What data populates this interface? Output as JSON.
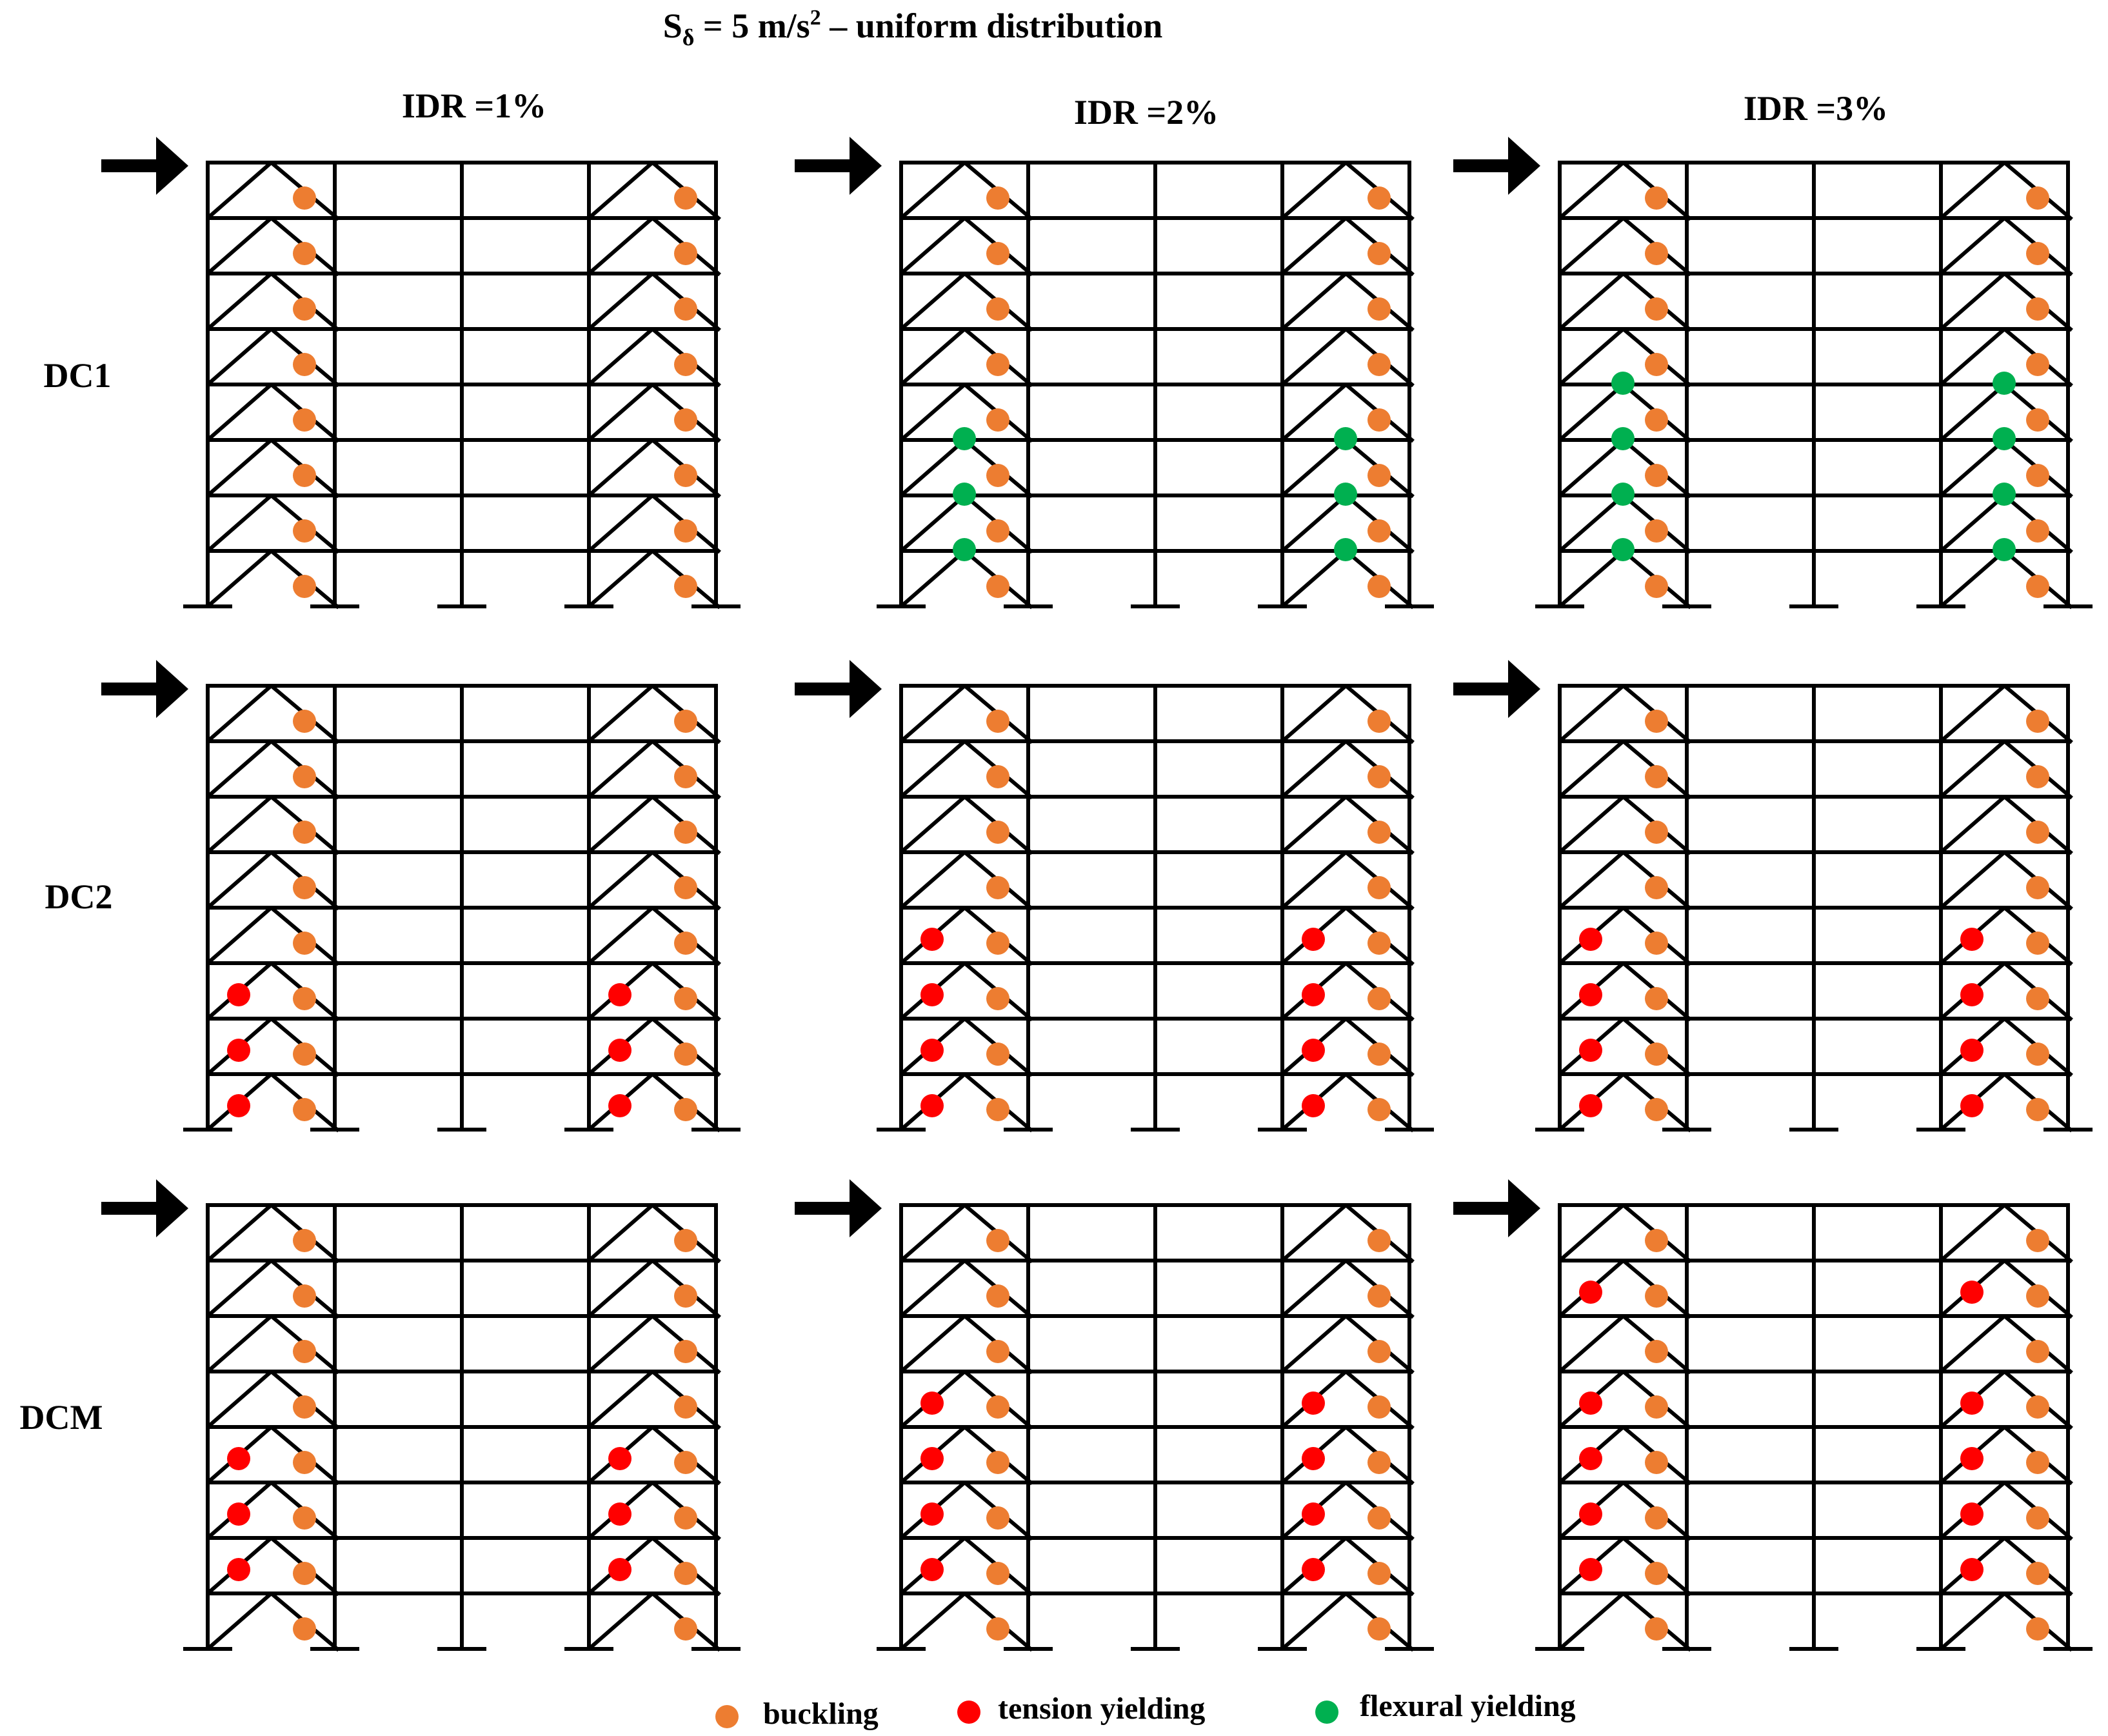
{
  "figure": {
    "title_main": "S",
    "title_sub": "δ",
    "title_mid": " = 5 m/s",
    "title_sup": "2",
    "title_tail": " – uniform distribution"
  },
  "columns": [
    "IDR =1%",
    "IDR =2%",
    "IDR =3%"
  ],
  "rows": [
    "DC1",
    "DC2",
    "DCM"
  ],
  "legend": [
    {
      "key": "buckling",
      "label": "buckling",
      "color": "#ED7D31"
    },
    {
      "key": "tension",
      "label": "tension yielding",
      "color": "#FF0000"
    },
    {
      "key": "flexural",
      "label": "flexural yielding",
      "color": "#00B050"
    }
  ],
  "frame": {
    "stories": 8,
    "bays": 4,
    "braced_bays": [
      0,
      3
    ],
    "load_arrow": "right-arrow"
  },
  "panels": [
    {
      "row": "DC1",
      "column": "IDR =1%",
      "buckling_stories": [
        1,
        2,
        3,
        4,
        5,
        6,
        7,
        8
      ],
      "tension_stories": [],
      "flexural_levels": []
    },
    {
      "row": "DC1",
      "column": "IDR =2%",
      "buckling_stories": [
        1,
        2,
        3,
        4,
        5,
        6,
        7,
        8
      ],
      "tension_stories": [],
      "flexural_levels": [
        2,
        3,
        4
      ]
    },
    {
      "row": "DC1",
      "column": "IDR =3%",
      "buckling_stories": [
        1,
        2,
        3,
        4,
        5,
        6,
        7,
        8
      ],
      "tension_stories": [],
      "flexural_levels": [
        2,
        3,
        4,
        5
      ]
    },
    {
      "row": "DC2",
      "column": "IDR =1%",
      "buckling_stories": [
        1,
        2,
        3,
        4,
        5,
        6,
        7,
        8
      ],
      "tension_stories": [
        1,
        2,
        3
      ],
      "flexural_levels": []
    },
    {
      "row": "DC2",
      "column": "IDR =2%",
      "buckling_stories": [
        1,
        2,
        3,
        4,
        5,
        6,
        7,
        8
      ],
      "tension_stories": [
        1,
        2,
        3,
        4
      ],
      "flexural_levels": []
    },
    {
      "row": "DC2",
      "column": "IDR =3%",
      "buckling_stories": [
        1,
        2,
        3,
        4,
        5,
        6,
        7,
        8
      ],
      "tension_stories": [
        1,
        2,
        3,
        4
      ],
      "flexural_levels": []
    },
    {
      "row": "DCM",
      "column": "IDR =1%",
      "buckling_stories": [
        1,
        2,
        3,
        4,
        5,
        6,
        7,
        8
      ],
      "tension_stories": [
        2,
        3,
        4
      ],
      "flexural_levels": []
    },
    {
      "row": "DCM",
      "column": "IDR =2%",
      "buckling_stories": [
        1,
        2,
        3,
        4,
        5,
        6,
        7,
        8
      ],
      "tension_stories": [
        2,
        3,
        4,
        5
      ],
      "flexural_levels": []
    },
    {
      "row": "DCM",
      "column": "IDR =3%",
      "buckling_stories": [
        1,
        2,
        3,
        4,
        5,
        6,
        7,
        8
      ],
      "tension_stories": [
        2,
        3,
        4,
        5,
        7
      ],
      "flexural_levels": []
    }
  ]
}
